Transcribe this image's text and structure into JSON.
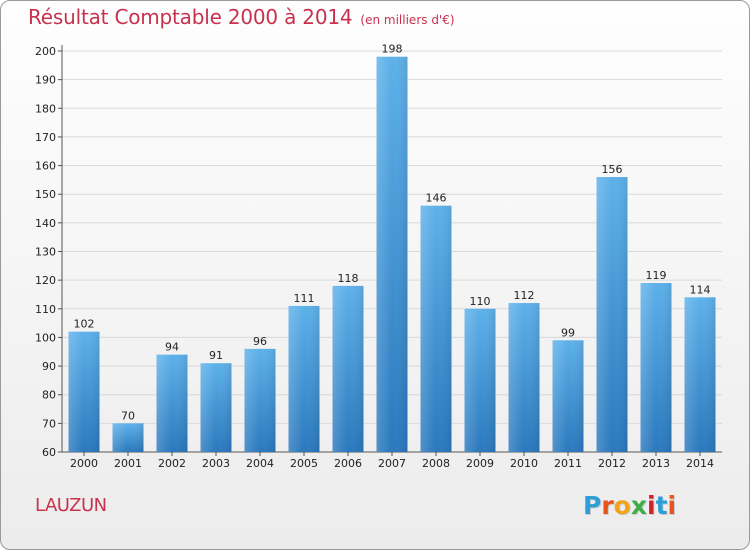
{
  "header": {
    "title": "Résultat Comptable 2000 à 2014",
    "subtitle": "(en milliers d'€)"
  },
  "footer": {
    "commune": "LAUZUN",
    "logo_text": "Proxiti",
    "logo_colors": [
      "#2a9fd8",
      "#e8541e",
      "#f2a31b",
      "#3fae49",
      "#d2232a",
      "#2a9fd8",
      "#e8541e"
    ]
  },
  "colors": {
    "title": "#c8324e",
    "bar_top": "#5db1ea",
    "bar_bottom": "#2a78bd",
    "grid": "#d9d9d9"
  },
  "chart_data": {
    "type": "bar",
    "title": "Résultat Comptable 2000 à 2014",
    "subtitle": "(en milliers d'€)",
    "categories": [
      "2000",
      "2001",
      "2002",
      "2003",
      "2004",
      "2005",
      "2006",
      "2007",
      "2008",
      "2009",
      "2010",
      "2011",
      "2012",
      "2013",
      "2014"
    ],
    "values": [
      102,
      70,
      94,
      91,
      96,
      111,
      118,
      198,
      146,
      110,
      112,
      99,
      156,
      119,
      114
    ],
    "ylim": [
      60,
      200
    ],
    "ytick_step": 10,
    "grid": true,
    "data_labels": true
  }
}
